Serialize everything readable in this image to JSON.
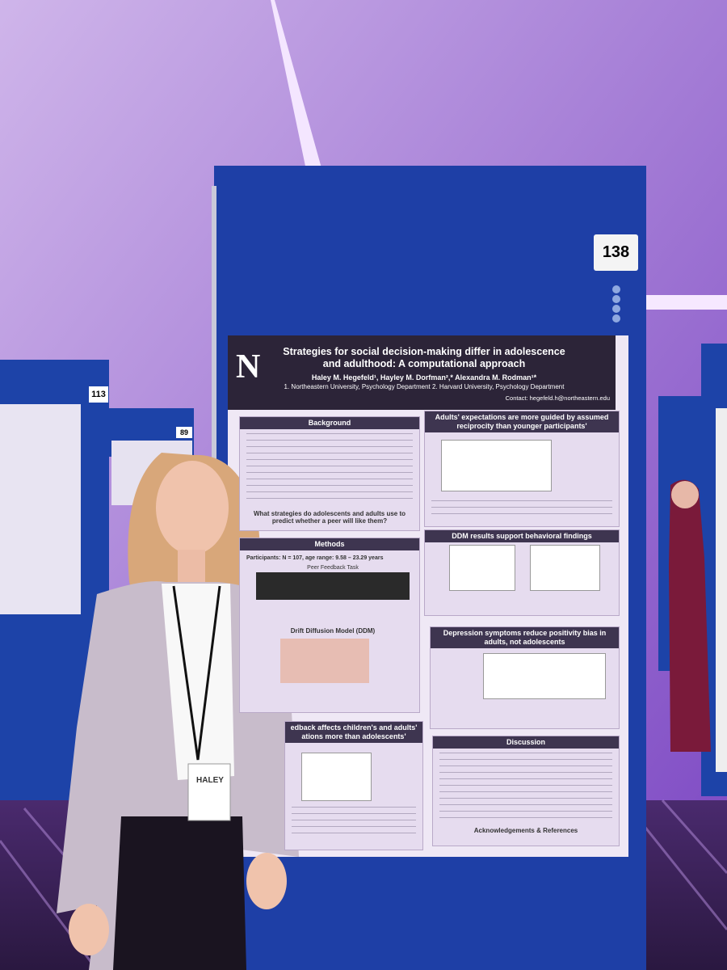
{
  "poster": {
    "board_number": "138",
    "logo": "N",
    "title": "Strategies for social decision-making differ in adolescence and adulthood: A computational approach",
    "authors": "Haley M. Hegefeld¹, Hayley M. Dorfman²,* Alexandra M. Rodman¹*",
    "affiliations": "1. Northeastern University, Psychology Department 2. Harvard University, Psychology Department",
    "contact": "Contact: hegefeld.h@northeastern.edu",
    "background": {
      "heading": "Background",
      "question": "What strategies do adolescents and adults use to predict whether a peer will like them?"
    },
    "reciprocity": {
      "heading": "Adults' expectations are more guided by assumed reciprocity than younger participants'"
    },
    "methods": {
      "heading": "Methods",
      "participants": "Participants: N = 107, age range: 9.58 – 23.29 years",
      "task": "Peer Feedback Task",
      "model": "Drift Diffusion Model (DDM)"
    },
    "ddm": {
      "heading": "DDM results support behavioral findings"
    },
    "depression": {
      "heading": "Depression symptoms reduce positivity bias in adults, not adolescents"
    },
    "feedback": {
      "heading": "edback affects children's and adults' ations more than adolescents'"
    },
    "discussion": {
      "heading": "Discussion",
      "acknowledgements": "Acknowledgements & References"
    }
  },
  "background_boards": [
    "113",
    "89"
  ],
  "name_badge": "HALEY"
}
